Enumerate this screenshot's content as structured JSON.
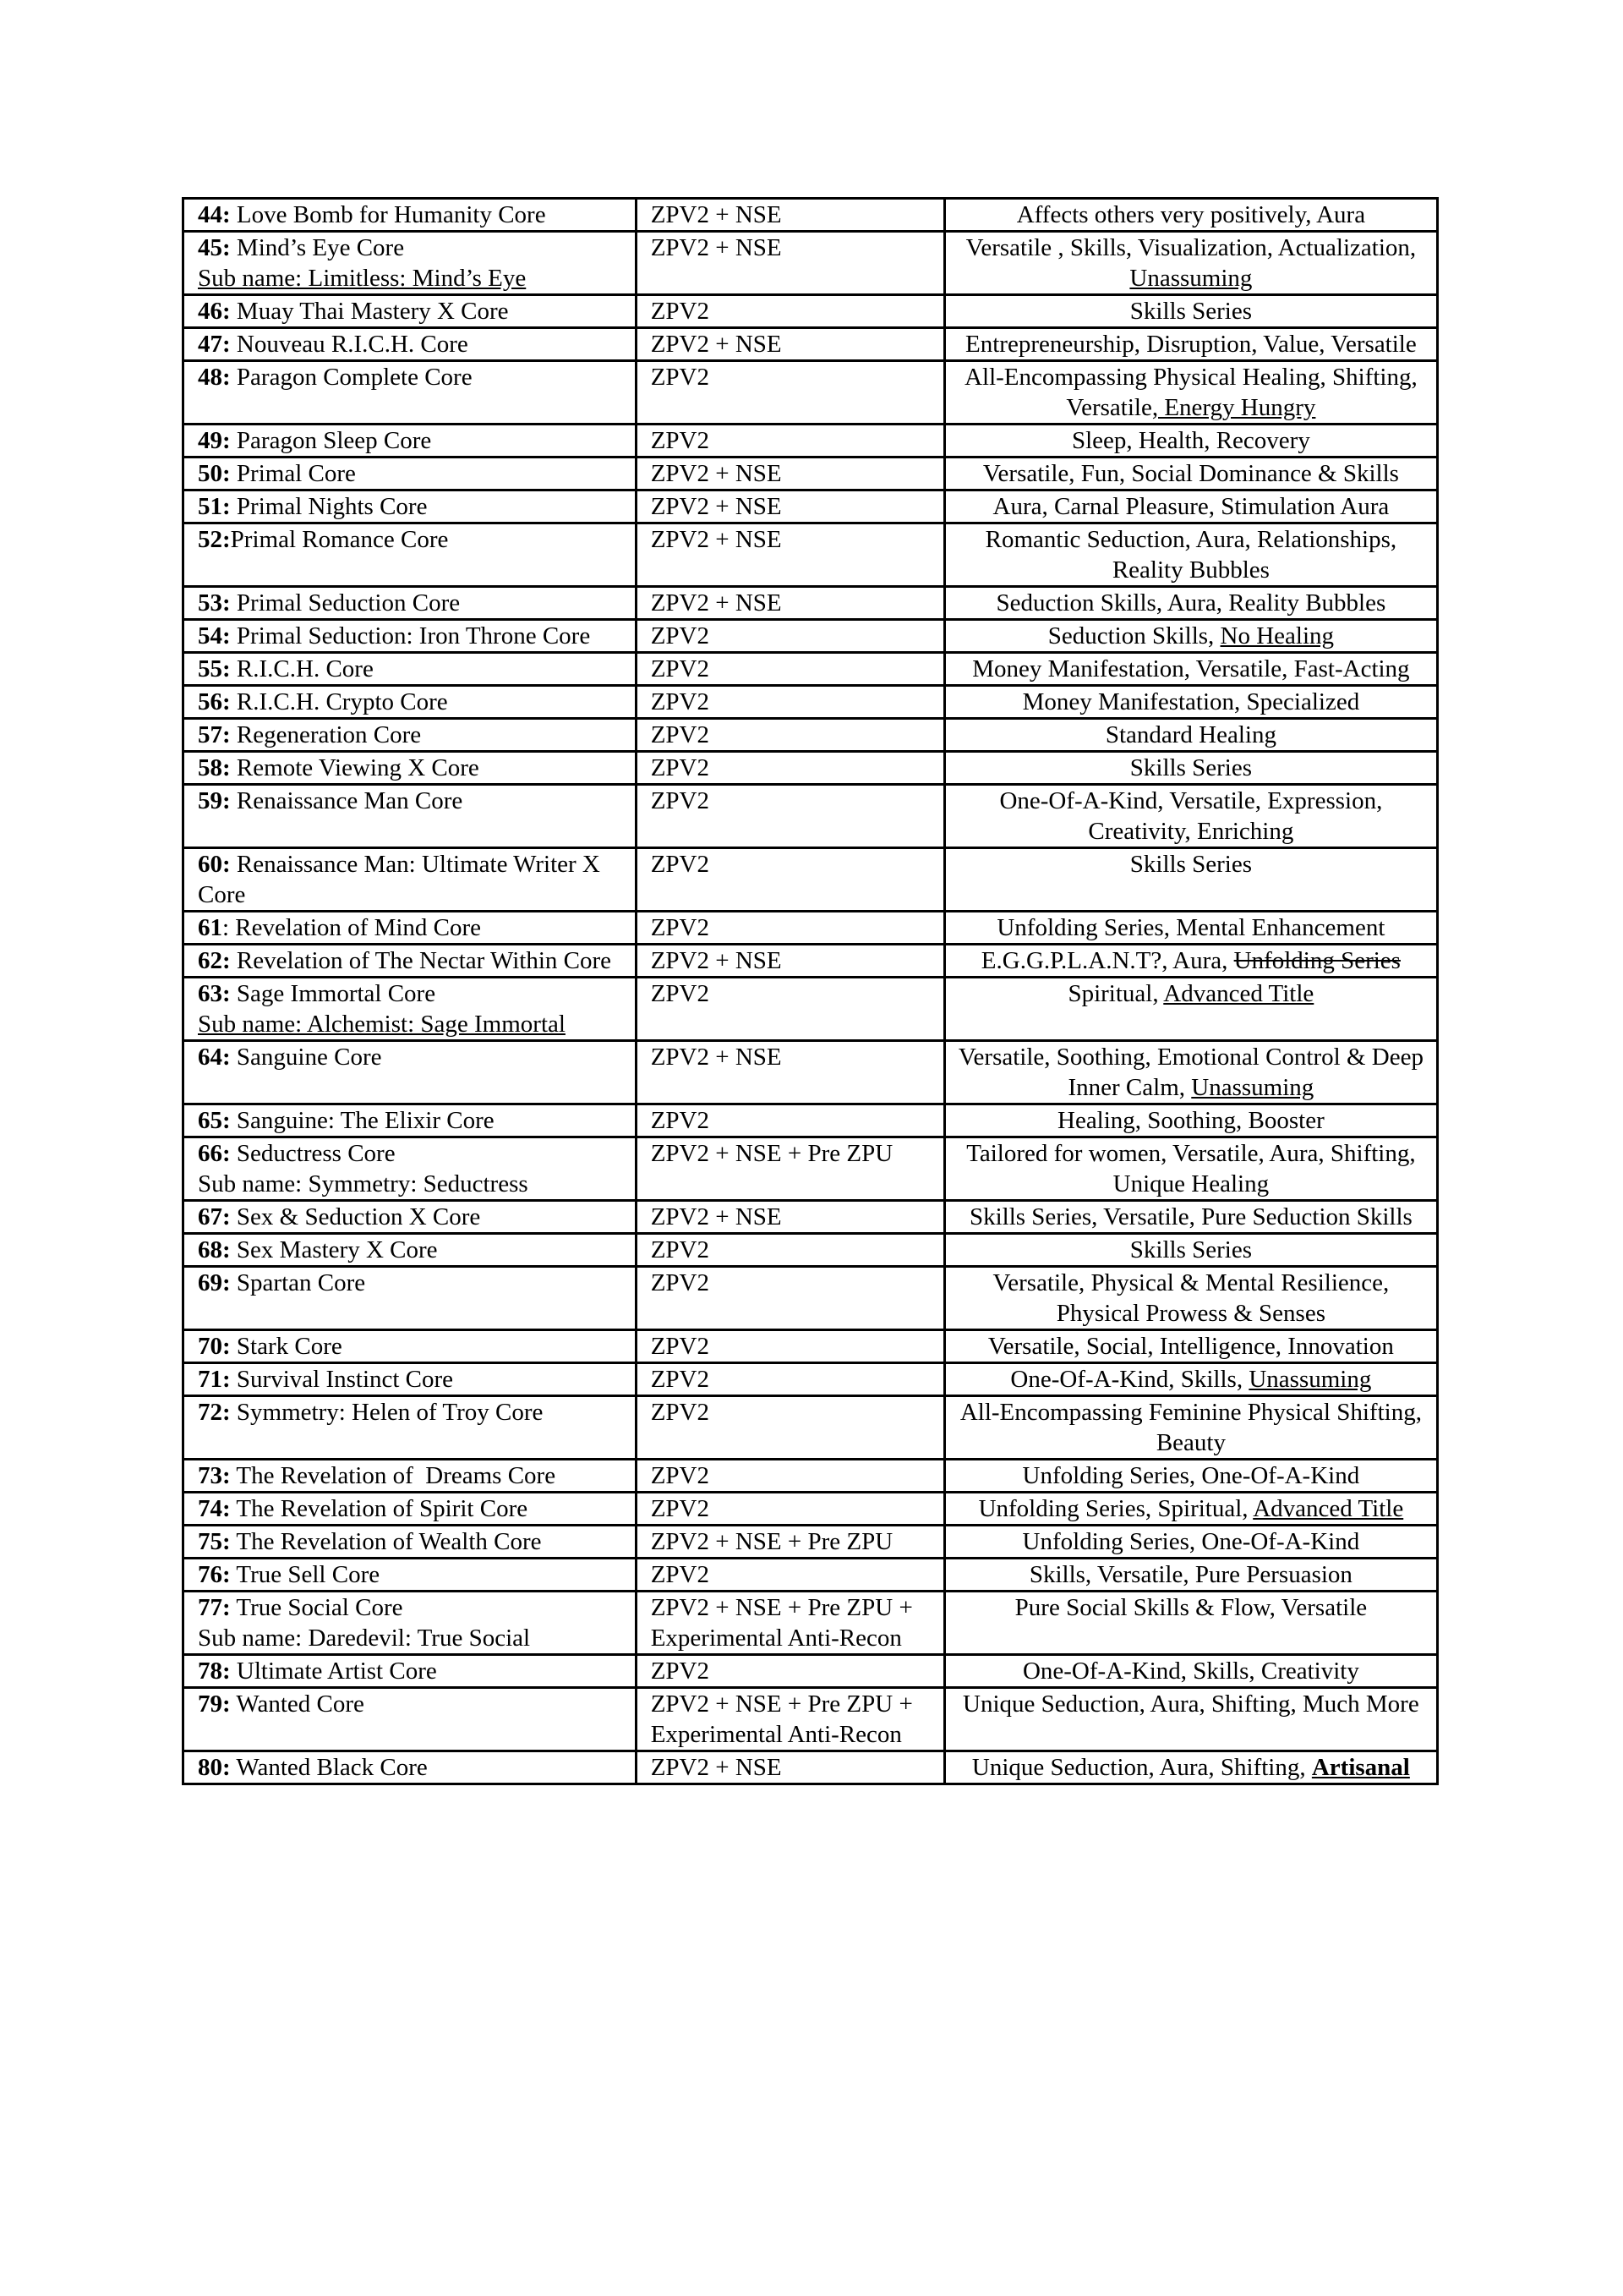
{
  "table": {
    "border_color": "#000000",
    "text_color": "#000000",
    "background": "#ffffff",
    "columns": [
      "name",
      "version",
      "description"
    ],
    "rows": [
      {
        "num": "44:",
        "name": " Love Bomb for Humanity Core",
        "version": "ZPV2 + NSE",
        "desc": [
          {
            "t": "Affects others very positively, Aura"
          }
        ]
      },
      {
        "num": "45:",
        "name": " Mind’s Eye Core",
        "subname": "Sub name: Limitless: Mind’s Eye",
        "subname_underline": true,
        "version": "ZPV2 + NSE",
        "desc": [
          {
            "t": "Versatile , Skills, Visualization, Actualization, "
          },
          {
            "t": "Unassuming",
            "u": true
          }
        ]
      },
      {
        "num": "46:",
        "name": " Muay Thai Mastery X Core",
        "version": "ZPV2",
        "desc": [
          {
            "t": "Skills Series"
          }
        ]
      },
      {
        "num": "47:",
        "name": " Nouveau R.I.C.H. Core",
        "version": "ZPV2 + NSE",
        "desc": [
          {
            "t": "Entrepreneurship, Disruption, Value, Versatile"
          }
        ]
      },
      {
        "num": "48:",
        "name": " Paragon Complete Core",
        "version": "ZPV2",
        "desc": [
          {
            "t": "All-Encompassing Physical Healing, Shifting, Versatile"
          },
          {
            "t": ", Energy Hungry",
            "u": true
          }
        ]
      },
      {
        "num": "49:",
        "name": " Paragon Sleep Core",
        "version": "ZPV2",
        "desc": [
          {
            "t": "Sleep, Health, Recovery"
          }
        ]
      },
      {
        "num": "50:",
        "name": " Primal Core",
        "version": "ZPV2 + NSE",
        "desc": [
          {
            "t": "Versatile, Fun, Social Dominance & Skills"
          }
        ]
      },
      {
        "num": "51:",
        "name": " Primal Nights Core",
        "version": "ZPV2 + NSE",
        "desc": [
          {
            "t": "Aura, Carnal Pleasure, Stimulation Aura"
          }
        ]
      },
      {
        "num": "52:",
        "name": "Primal Romance Core",
        "version": "ZPV2 + NSE",
        "desc": [
          {
            "t": "Romantic Seduction, Aura, Relationships, Reality Bubbles"
          }
        ]
      },
      {
        "num": "53:",
        "name": " Primal Seduction Core",
        "version": "ZPV2 + NSE",
        "desc": [
          {
            "t": "Seduction Skills, Aura, Reality Bubbles"
          }
        ]
      },
      {
        "num": "54:",
        "name": " Primal Seduction: Iron Throne Core",
        "version": "ZPV2",
        "desc": [
          {
            "t": "Seduction Skills, "
          },
          {
            "t": "No Healing",
            "u": true
          }
        ]
      },
      {
        "num": "55:",
        "name": " R.I.C.H. Core",
        "version": "ZPV2",
        "desc": [
          {
            "t": "Money Manifestation, Versatile, Fast-Acting"
          }
        ]
      },
      {
        "num": "56:",
        "name": " R.I.C.H. Crypto Core",
        "version": "ZPV2",
        "desc": [
          {
            "t": "Money Manifestation, Specialized"
          }
        ]
      },
      {
        "num": "57:",
        "name": " Regeneration Core",
        "version": "ZPV2",
        "desc": [
          {
            "t": "Standard Healing"
          }
        ]
      },
      {
        "num": "58:",
        "name": " Remote Viewing X Core",
        "version": "ZPV2",
        "desc": [
          {
            "t": "Skills Series"
          }
        ]
      },
      {
        "num": "59:",
        "name": " Renaissance Man Core",
        "version": "ZPV2",
        "desc": [
          {
            "t": "One-Of-A-Kind, Versatile, Expression, Creativity, Enriching"
          }
        ]
      },
      {
        "num": "60:",
        "name": " Renaissance Man: Ultimate Writer X Core",
        "version": "ZPV2",
        "desc": [
          {
            "t": "Skills Series"
          }
        ]
      },
      {
        "num": "61",
        "name": ": Revelation of Mind Core",
        "version": "ZPV2",
        "desc": [
          {
            "t": "Unfolding Series, Mental Enhancement"
          }
        ]
      },
      {
        "num": "62:",
        "name": " Revelation of The Nectar Within Core",
        "version": "ZPV2 + NSE",
        "desc": [
          {
            "t": "E.G.G.P.L.A.N.T?, Aura, "
          },
          {
            "t": "Unfolding Series",
            "s": true
          }
        ]
      },
      {
        "num": "63:",
        "name": " Sage Immortal Core",
        "subname": "Sub name: Alchemist: Sage Immortal",
        "subname_underline": true,
        "version": "ZPV2",
        "desc": [
          {
            "t": "Spiritual, "
          },
          {
            "t": "Advanced Title",
            "u": true
          }
        ]
      },
      {
        "num": "64:",
        "name": " Sanguine Core",
        "version": "ZPV2 + NSE",
        "desc": [
          {
            "t": "Versatile, Soothing, Emotional Control & Deep Inner Calm, "
          },
          {
            "t": "Unassuming",
            "u": true
          }
        ]
      },
      {
        "num": "65:",
        "name": " Sanguine: The Elixir Core",
        "version": "ZPV2",
        "desc": [
          {
            "t": "Healing, Soothing, Booster"
          }
        ]
      },
      {
        "num": "66:",
        "name": " Seductress Core",
        "subname": "Sub name: Symmetry: Seductress",
        "subname_underline": false,
        "version": "ZPV2 + NSE + Pre ZPU",
        "desc": [
          {
            "t": "Tailored for women, Versatile, Aura, Shifting, Unique Healing"
          }
        ]
      },
      {
        "num": "67:",
        "name": " Sex & Seduction X Core",
        "version": "ZPV2 + NSE",
        "desc": [
          {
            "t": "Skills Series, Versatile, Pure Seduction Skills"
          }
        ]
      },
      {
        "num": "68:",
        "name": " Sex Mastery X Core",
        "version": "ZPV2",
        "desc": [
          {
            "t": "Skills Series"
          }
        ]
      },
      {
        "num": "69:",
        "name": " Spartan Core",
        "version": "ZPV2",
        "desc": [
          {
            "t": "Versatile, Physical & Mental Resilience, Physical Prowess & Senses"
          }
        ]
      },
      {
        "num": "70:",
        "name": " Stark Core",
        "version": "ZPV2",
        "desc": [
          {
            "t": "Versatile, Social, Intelligence, Innovation"
          }
        ]
      },
      {
        "num": "71:",
        "name": " Survival Instinct Core",
        "version": "ZPV2",
        "desc": [
          {
            "t": "One-Of-A-Kind, Skills, "
          },
          {
            "t": "Unassuming",
            "u": true
          }
        ]
      },
      {
        "num": "72:",
        "name": " Symmetry: Helen of Troy Core",
        "version": "ZPV2",
        "desc": [
          {
            "t": "All-Encompassing Feminine Physical Shifting, Beauty"
          }
        ]
      },
      {
        "num": "73:",
        "name": " The Revelation of  Dreams Core",
        "version": "ZPV2",
        "desc": [
          {
            "t": "Unfolding Series, One-Of-A-Kind"
          }
        ]
      },
      {
        "num": "74:",
        "name": " The Revelation of Spirit Core",
        "version": "ZPV2",
        "desc": [
          {
            "t": "Unfolding Series, Spiritual, "
          },
          {
            "t": "Advanced Title",
            "u": true
          }
        ]
      },
      {
        "num": "75:",
        "name": " The Revelation of Wealth Core",
        "version": "ZPV2 + NSE + Pre ZPU",
        "desc": [
          {
            "t": "Unfolding Series, One-Of-A-Kind"
          }
        ]
      },
      {
        "num": "76:",
        "name": " True Sell Core",
        "version": "ZPV2",
        "desc": [
          {
            "t": "Skills, Versatile, Pure Persuasion"
          }
        ]
      },
      {
        "num": "77:",
        "name": " True Social Core",
        "subname": "Sub name: Daredevil: True Social",
        "subname_underline": false,
        "version": "ZPV2 + NSE + Pre ZPU + Experimental Anti-Recon",
        "desc": [
          {
            "t": "Pure Social Skills & Flow, Versatile"
          }
        ]
      },
      {
        "num": "78:",
        "name": " Ultimate Artist Core",
        "version": "ZPV2",
        "desc": [
          {
            "t": "One-Of-A-Kind, Skills, Creativity"
          }
        ]
      },
      {
        "num": "79:",
        "name": " Wanted Core",
        "version": "ZPV2 + NSE + Pre ZPU + Experimental Anti-Recon",
        "desc": [
          {
            "t": "Unique Seduction, Aura, Shifting, Much More"
          }
        ]
      },
      {
        "num": "80:",
        "name": " Wanted Black Core",
        "version": "ZPV2 + NSE",
        "desc": [
          {
            "t": "Unique Seduction, Aura, Shifting, "
          },
          {
            "t": "Artisanal",
            "u": true,
            "b": true
          }
        ]
      }
    ]
  }
}
